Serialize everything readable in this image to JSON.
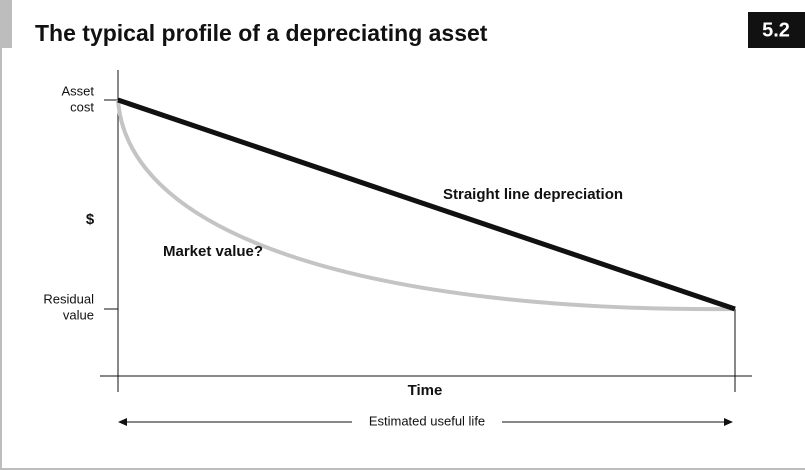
{
  "header": {
    "title": "The typical profile of a depreciating asset",
    "badge": "5.2"
  },
  "diagram": {
    "y_axis_label": "$",
    "y_marks": {
      "asset_cost": [
        "Asset",
        "cost"
      ],
      "residual_value": [
        "Residual",
        "value"
      ]
    },
    "x_axis_label": "Time",
    "span_label": "Estimated useful life",
    "annotations": {
      "straight_line": "Straight line depreciation",
      "market_value": "Market value?"
    }
  }
}
